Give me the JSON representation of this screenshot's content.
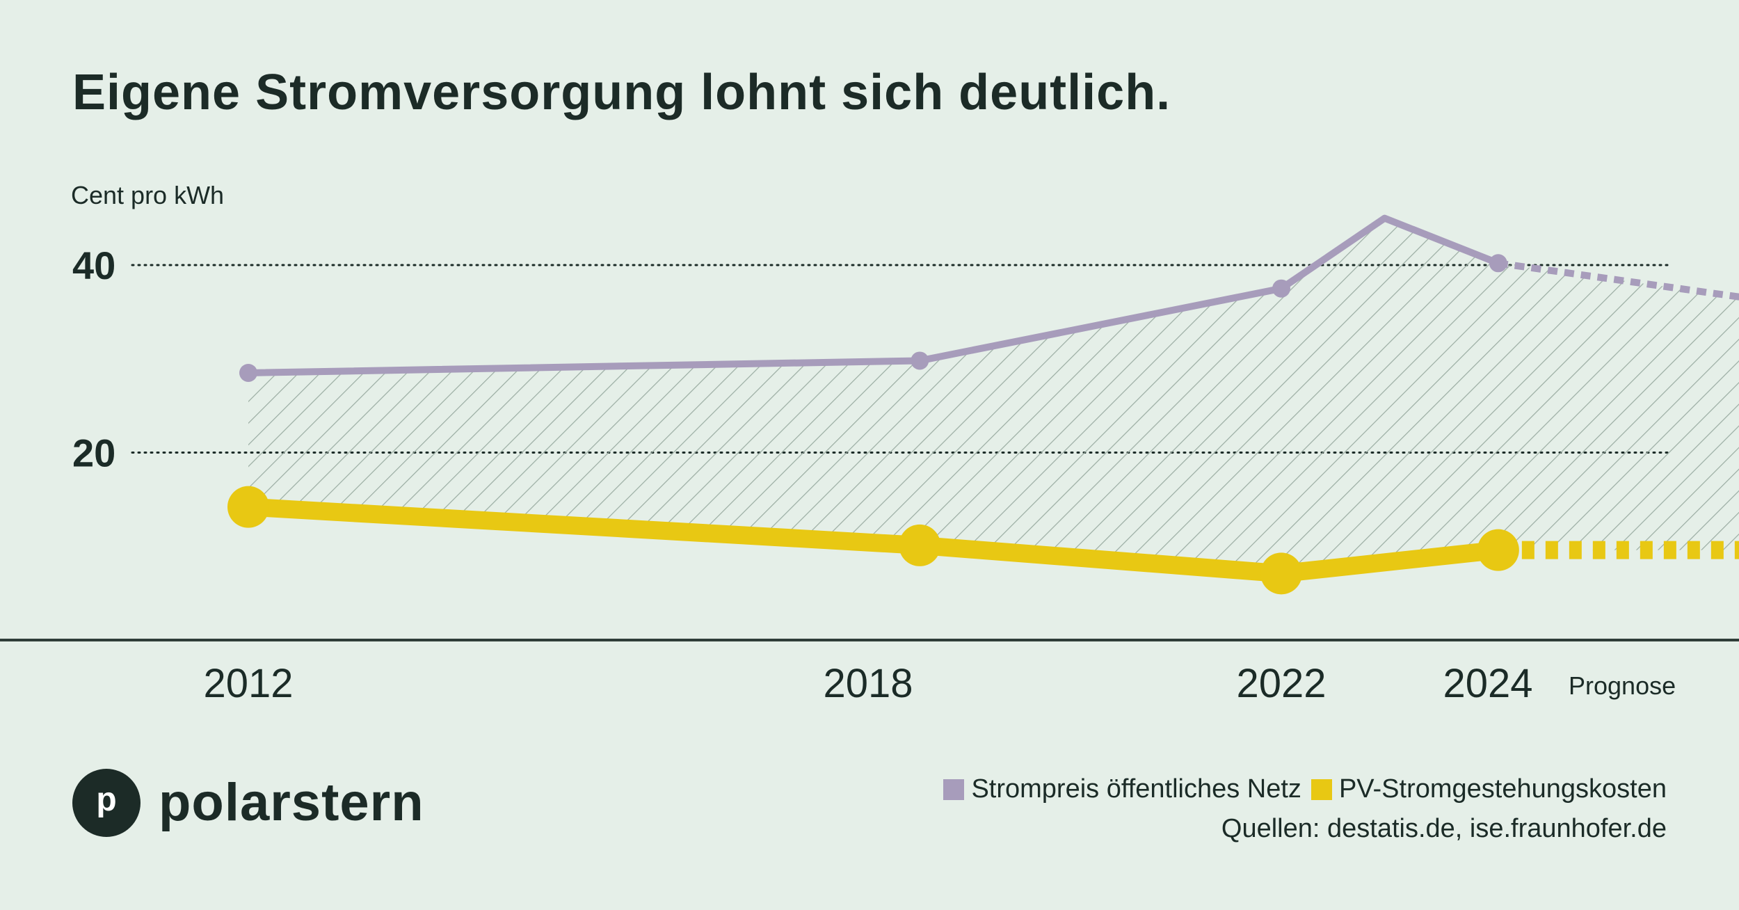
{
  "title": "Eigene Stromversorgung lohnt sich deutlich.",
  "brand": {
    "logo_letter": "p",
    "name": "polarstern"
  },
  "legend": {
    "items": [
      {
        "label": "Strompreis öffentliches Netz",
        "color": "#a79cbb"
      },
      {
        "label": "PV-Stromgestehungskosten",
        "color": "#e8c813"
      }
    ],
    "sources": "Quellen: destatis.de, ise.fraunhofer.de"
  },
  "chart_data": {
    "type": "line",
    "ylabel": "Cent pro kWh",
    "yticks": [
      20,
      40
    ],
    "ylim": [
      0,
      48.5
    ],
    "xticks": [
      2012,
      2018,
      2022,
      2024
    ],
    "forecast_label": "Prognose",
    "grid": "dotted horizontal lines at y ticks",
    "series": [
      {
        "name": "Strompreis öffentliches Netz",
        "color": "#a79cbb",
        "x": [
          2012,
          2018.5,
          2022,
          2023,
          2024.1
        ],
        "y": [
          28.5,
          29.8,
          37.5,
          45,
          40.2
        ],
        "markers": [
          true,
          true,
          true,
          false,
          true
        ],
        "forecast": {
          "x": [
            2024.1,
            2026.5
          ],
          "y": [
            40.2,
            36.5
          ]
        }
      },
      {
        "name": "PV-Stromgestehungskosten",
        "color": "#e8c813",
        "x": [
          2012,
          2018.5,
          2022,
          2024.1
        ],
        "y": [
          14.2,
          10.1,
          7.1,
          9.6
        ],
        "markers": [
          true,
          true,
          true,
          true
        ],
        "forecast": {
          "x": [
            2024.1,
            2026.5
          ],
          "y": [
            9.6,
            9.6
          ]
        }
      }
    ],
    "shaded_area": "hatched area between the two series"
  }
}
